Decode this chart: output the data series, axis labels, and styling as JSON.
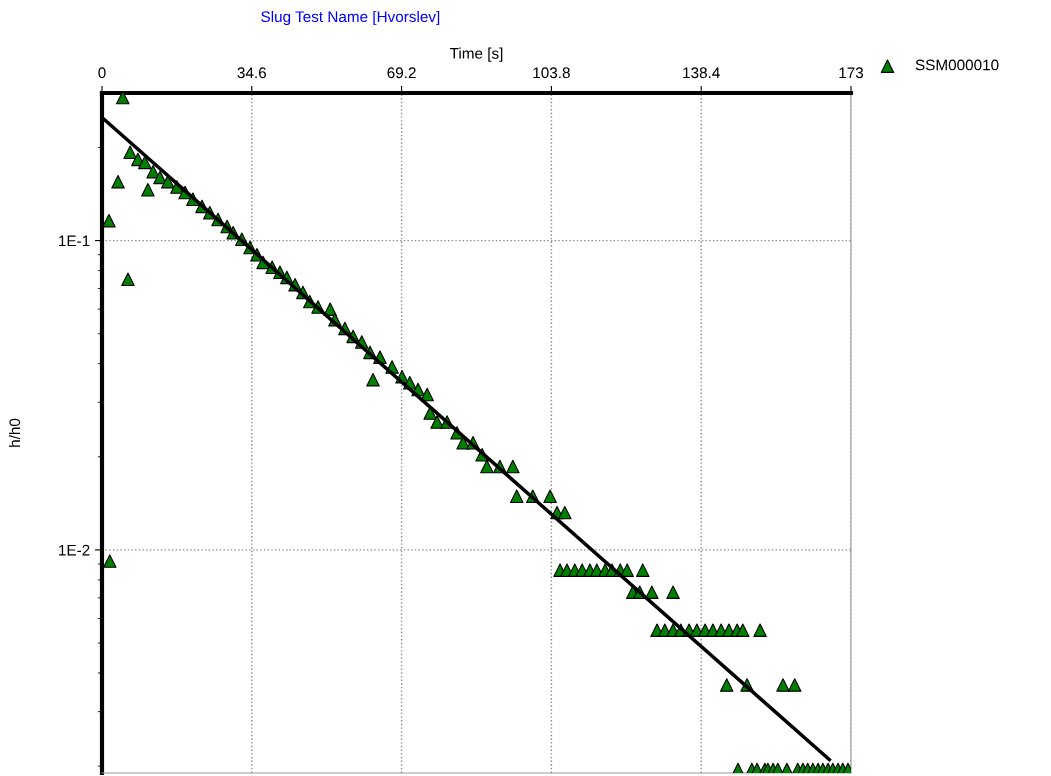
{
  "chart_data": {
    "type": "scatter",
    "title": "Slug Test Name [Hvorslev]",
    "xlabel": "Time [s]",
    "ylabel": "h/h0",
    "log": "y",
    "grid": true,
    "legend": "top right",
    "marker": "triangle",
    "xlim": [
      0,
      173
    ],
    "xticks": [
      0,
      34.6,
      69.2,
      103.8,
      138.4,
      173
    ],
    "ylim": [
      0.0019,
      0.3
    ],
    "yticks": [
      {
        "value": 0.2,
        "label": null
      },
      {
        "value": 0.1,
        "label": "1E-1"
      },
      {
        "value": 0.09,
        "label": null
      },
      {
        "value": 0.08,
        "label": null
      },
      {
        "value": 0.07,
        "label": null
      },
      {
        "value": 0.06,
        "label": null
      },
      {
        "value": 0.05,
        "label": null
      },
      {
        "value": 0.04,
        "label": null
      },
      {
        "value": 0.03,
        "label": null
      },
      {
        "value": 0.02,
        "label": null
      },
      {
        "value": 0.01,
        "label": "1E-2"
      },
      {
        "value": 0.009,
        "label": null
      },
      {
        "value": 0.008,
        "label": null
      },
      {
        "value": 0.007,
        "label": null
      },
      {
        "value": 0.006,
        "label": null
      },
      {
        "value": 0.005,
        "label": null
      },
      {
        "value": 0.004,
        "label": null
      },
      {
        "value": 0.003,
        "label": null
      },
      {
        "value": 0.002,
        "label": null
      }
    ],
    "series": [
      {
        "name": "SSM000010",
        "color": "#008000",
        "x": [
          1.6,
          1.8,
          3.7,
          4.8,
          6.0,
          6.5,
          8.3,
          9.9,
          10.6,
          11.8,
          13.4,
          15.2,
          17.3,
          19.2,
          21.0,
          23.1,
          24.9,
          26.8,
          28.9,
          30.3,
          32.3,
          34.2,
          35.8,
          37.2,
          39.3,
          41.1,
          42.7,
          44.6,
          46.4,
          48.0,
          49.9,
          52.7,
          53.8,
          56.1,
          58.0,
          60.0,
          61.9,
          62.6,
          64.2,
          67.0,
          69.3,
          71.1,
          73.0,
          75.1,
          75.8,
          77.4,
          79.7,
          82.0,
          83.4,
          85.7,
          87.8,
          88.9,
          91.9,
          94.9,
          95.8,
          99.5,
          103.5,
          105.1,
          106.9,
          105.8,
          107.4,
          109.2,
          110.9,
          112.7,
          114.3,
          116.2,
          117.8,
          119.7,
          121.3,
          124.9,
          122.6,
          124.2,
          127.0,
          131.9,
          128.2,
          130.0,
          131.9,
          133.7,
          135.6,
          137.4,
          139.3,
          141.1,
          143.0,
          144.8,
          146.7,
          148.0,
          152.0,
          144.3,
          149.0,
          157.3,
          160.0,
          146.9,
          150.1,
          151.3,
          153.1,
          153.8,
          155.0,
          156.1,
          158.2,
          160.7,
          161.9,
          163.0,
          164.2,
          165.4,
          166.5,
          167.7,
          168.8,
          170.0,
          171.1,
          172.3
        ],
        "values": [
          0.116,
          0.0092,
          0.155,
          0.29,
          0.075,
          0.193,
          0.183,
          0.179,
          0.146,
          0.167,
          0.16,
          0.155,
          0.149,
          0.143,
          0.136,
          0.129,
          0.123,
          0.117,
          0.111,
          0.106,
          0.101,
          0.095,
          0.09,
          0.085,
          0.082,
          0.079,
          0.076,
          0.072,
          0.068,
          0.0635,
          0.061,
          0.06,
          0.0555,
          0.052,
          0.049,
          0.047,
          0.0435,
          0.0355,
          0.042,
          0.039,
          0.0363,
          0.0347,
          0.033,
          0.0318,
          0.0277,
          0.0259,
          0.0259,
          0.0239,
          0.0222,
          0.0222,
          0.0203,
          0.0186,
          0.0186,
          0.0186,
          0.0149,
          0.0149,
          0.0149,
          0.0132,
          0.0132,
          0.0086,
          0.0086,
          0.0086,
          0.0086,
          0.0086,
          0.0086,
          0.0086,
          0.0086,
          0.0086,
          0.0086,
          0.0086,
          0.0073,
          0.0073,
          0.0073,
          0.0073,
          0.0055,
          0.0055,
          0.0055,
          0.0055,
          0.0055,
          0.0055,
          0.0055,
          0.0055,
          0.0055,
          0.0055,
          0.0055,
          0.0055,
          0.0055,
          0.00366,
          0.00366,
          0.00366,
          0.00366,
          0.00195,
          0.00195,
          0.00195,
          0.00195,
          0.00195,
          0.00195,
          0.00195,
          0.00195,
          0.00195,
          0.00195,
          0.00195,
          0.00195,
          0.00195,
          0.00195,
          0.00195,
          0.00195,
          0.00195,
          0.00195,
          0.00195
        ]
      },
      {
        "type": "line",
        "color": "#000000",
        "marker": "none",
        "x": [
          0,
          168
        ],
        "values": [
          0.25,
          0.0021
        ]
      }
    ]
  }
}
